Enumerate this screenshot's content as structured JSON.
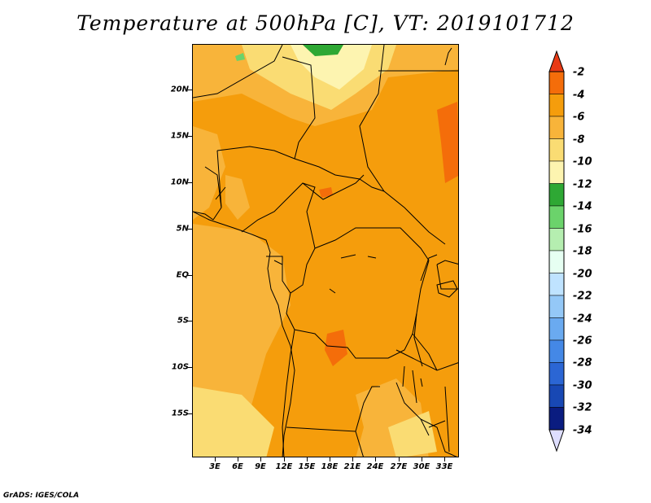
{
  "title": "Temperature at 500hPa [C], VT: 2019101712",
  "credit": "GrADS: IGES/COLA",
  "map": {
    "lat_labels": [
      "20N",
      "15N",
      "10N",
      "5N",
      "EQ",
      "5S",
      "10S",
      "15S"
    ],
    "lon_labels": [
      "3E",
      "6E",
      "9E",
      "12E",
      "15E",
      "18E",
      "21E",
      "24E",
      "27E",
      "30E",
      "33E"
    ]
  },
  "colorbar": {
    "labels": [
      "-2",
      "-4",
      "-6",
      "-8",
      "-10",
      "-12",
      "-14",
      "-16",
      "-18",
      "-20",
      "-22",
      "-24",
      "-26",
      "-28",
      "-30",
      "-32",
      "-34"
    ],
    "colors": [
      "#e83a15",
      "#f46d0a",
      "#f59d0c",
      "#f8b43a",
      "#fadc73",
      "#fdf4b0",
      "#2ea834",
      "#6bd36b",
      "#b5eeb0",
      "#e6fff2",
      "#bfe3ff",
      "#94c8f7",
      "#6aaaf0",
      "#4488e6",
      "#2b66d4",
      "#1848b4",
      "#0a1c80",
      "#dedeff"
    ]
  }
}
